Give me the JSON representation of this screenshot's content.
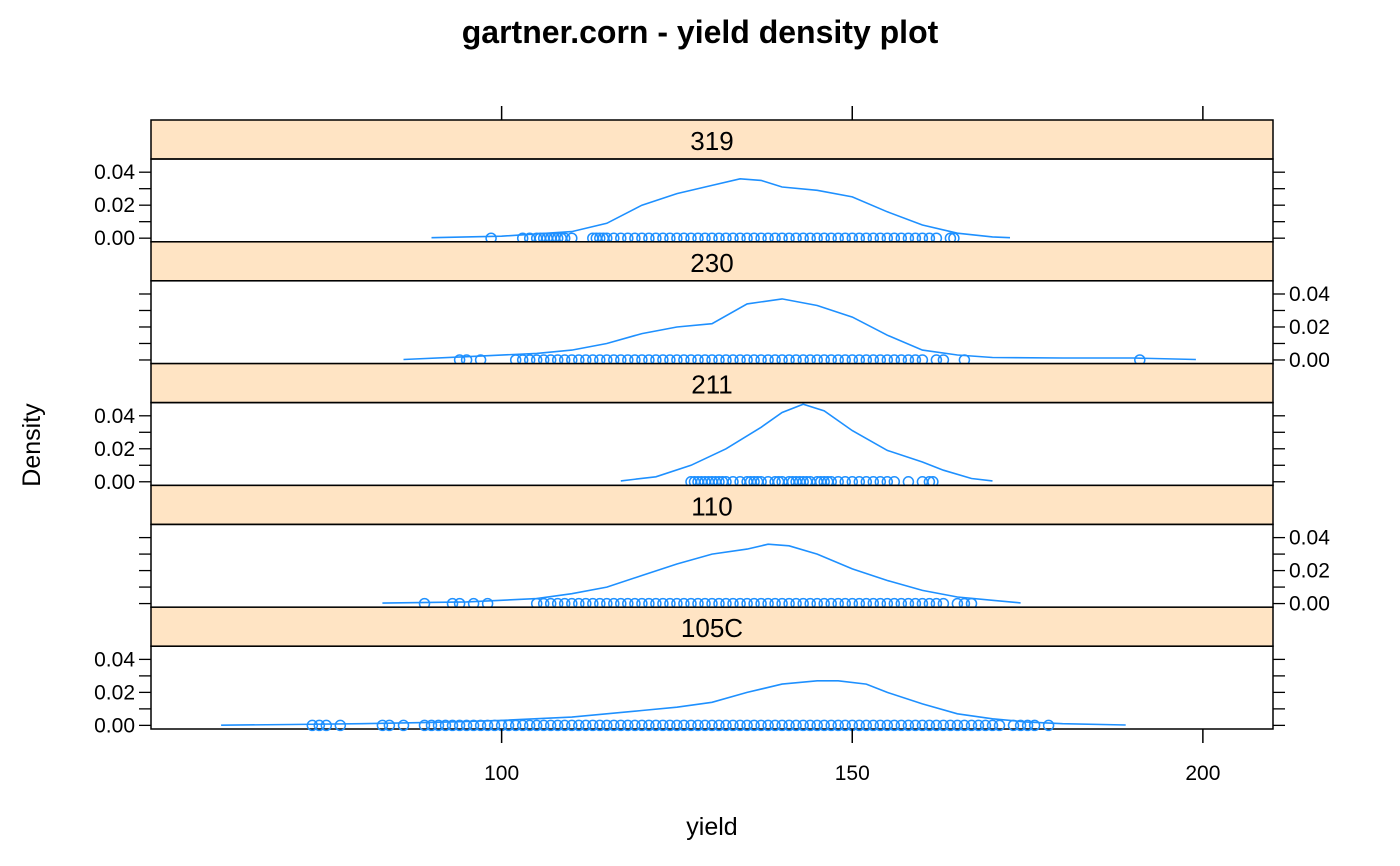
{
  "chart_data": {
    "type": "density",
    "title": "gartner.corn - yield density plot",
    "xlabel": "yield",
    "ylabel": "Density",
    "xlim": [
      50,
      210
    ],
    "ylim": [
      -0.0022,
      0.048
    ],
    "x_ticks": [
      100,
      150,
      200
    ],
    "y_ticks": [
      0.0,
      0.02,
      0.04
    ],
    "y_tick_labels": [
      "0.00",
      "0.02",
      "0.04"
    ],
    "line_color": "#1E90FF",
    "strip_color": "#FFE4C4",
    "panels": [
      {
        "label": "319",
        "curve": [
          [
            90,
            0.0003
          ],
          [
            100,
            0.0012
          ],
          [
            110,
            0.004
          ],
          [
            115,
            0.009
          ],
          [
            120,
            0.02
          ],
          [
            125,
            0.027
          ],
          [
            130,
            0.032
          ],
          [
            134,
            0.036
          ],
          [
            137,
            0.035
          ],
          [
            140,
            0.031
          ],
          [
            145,
            0.029
          ],
          [
            150,
            0.025
          ],
          [
            155,
            0.016
          ],
          [
            160,
            0.008
          ],
          [
            165,
            0.003
          ],
          [
            170,
            0.0008
          ],
          [
            172.5,
            0.0003
          ]
        ],
        "points": [
          98.5,
          103,
          104,
          105,
          105.5,
          106,
          106.5,
          107,
          107.5,
          108,
          108.5,
          109,
          110,
          113,
          113.5,
          114,
          114.5,
          115,
          116,
          117,
          118,
          119,
          120,
          121,
          122,
          123,
          124,
          125,
          126,
          127,
          128,
          129,
          130,
          131,
          132,
          133,
          134,
          135,
          136,
          137,
          138,
          139,
          140,
          141,
          142,
          143,
          144,
          145,
          146,
          147,
          148,
          149,
          150,
          151,
          152,
          153,
          154,
          155,
          156,
          157,
          158,
          159,
          160,
          161,
          162,
          164,
          164.5
        ]
      },
      {
        "label": "230",
        "curve": [
          [
            86,
            0.0003
          ],
          [
            95,
            0.002
          ],
          [
            105,
            0.004
          ],
          [
            110,
            0.006
          ],
          [
            115,
            0.01
          ],
          [
            120,
            0.016
          ],
          [
            125,
            0.02
          ],
          [
            130,
            0.022
          ],
          [
            135,
            0.034
          ],
          [
            140,
            0.037
          ],
          [
            145,
            0.033
          ],
          [
            150,
            0.026
          ],
          [
            155,
            0.015
          ],
          [
            160,
            0.006
          ],
          [
            165,
            0.003
          ],
          [
            170,
            0.0015
          ],
          [
            180,
            0.0012
          ],
          [
            190,
            0.0012
          ],
          [
            199,
            0.0003
          ]
        ],
        "points": [
          94,
          95,
          97,
          102,
          103,
          104,
          105,
          106,
          107,
          108,
          109,
          110,
          111,
          112,
          113,
          114,
          115,
          116,
          117,
          118,
          119,
          120,
          121,
          122,
          123,
          124,
          125,
          126,
          127,
          128,
          129,
          130,
          131,
          132,
          133,
          134,
          135,
          136,
          137,
          138,
          139,
          140,
          141,
          142,
          143,
          144,
          145,
          146,
          147,
          148,
          149,
          150,
          151,
          152,
          153,
          154,
          155,
          156,
          157,
          158,
          159,
          160,
          162,
          163,
          166,
          191
        ]
      },
      {
        "label": "211",
        "curve": [
          [
            117,
            0.0005
          ],
          [
            122,
            0.003
          ],
          [
            127,
            0.01
          ],
          [
            132,
            0.02
          ],
          [
            137,
            0.033
          ],
          [
            140,
            0.042
          ],
          [
            143,
            0.047
          ],
          [
            146,
            0.043
          ],
          [
            150,
            0.031
          ],
          [
            155,
            0.019
          ],
          [
            160,
            0.012
          ],
          [
            163,
            0.007
          ],
          [
            167,
            0.002
          ],
          [
            170,
            0.0005
          ]
        ],
        "points": [
          127,
          127.5,
          128,
          128.5,
          129,
          129.5,
          130,
          130.5,
          131,
          131.5,
          132,
          133,
          134,
          135,
          135.5,
          136,
          136.5,
          137,
          138,
          139,
          139.5,
          140,
          141,
          141.5,
          142,
          142.5,
          143,
          143.5,
          144,
          145,
          145.5,
          146,
          146.5,
          147,
          148,
          149,
          150,
          151,
          152,
          153,
          154,
          155,
          156,
          158,
          160,
          161,
          161.5
        ]
      },
      {
        "label": "110",
        "curve": [
          [
            83,
            0.0003
          ],
          [
            95,
            0.001
          ],
          [
            105,
            0.003
          ],
          [
            110,
            0.006
          ],
          [
            115,
            0.01
          ],
          [
            120,
            0.017
          ],
          [
            125,
            0.024
          ],
          [
            130,
            0.03
          ],
          [
            135,
            0.033
          ],
          [
            138,
            0.036
          ],
          [
            141,
            0.035
          ],
          [
            145,
            0.03
          ],
          [
            150,
            0.021
          ],
          [
            155,
            0.014
          ],
          [
            160,
            0.008
          ],
          [
            165,
            0.004
          ],
          [
            170,
            0.002
          ],
          [
            174,
            0.0004
          ]
        ],
        "points": [
          89,
          93,
          94,
          96,
          98,
          105,
          106,
          107,
          108,
          109,
          110,
          111,
          112,
          113,
          114,
          115,
          116,
          117,
          118,
          119,
          120,
          121,
          122,
          123,
          124,
          125,
          126,
          127,
          128,
          129,
          130,
          131,
          132,
          133,
          134,
          135,
          136,
          137,
          138,
          139,
          140,
          141,
          142,
          143,
          144,
          145,
          146,
          147,
          148,
          149,
          150,
          151,
          152,
          153,
          154,
          155,
          156,
          157,
          158,
          159,
          160,
          161,
          162,
          163,
          165,
          166,
          167
        ]
      },
      {
        "label": "105C",
        "curve": [
          [
            60,
            0.0001
          ],
          [
            70,
            0.0005
          ],
          [
            80,
            0.001
          ],
          [
            90,
            0.0018
          ],
          [
            100,
            0.003
          ],
          [
            110,
            0.005
          ],
          [
            120,
            0.009
          ],
          [
            125,
            0.011
          ],
          [
            130,
            0.014
          ],
          [
            135,
            0.02
          ],
          [
            140,
            0.025
          ],
          [
            145,
            0.027
          ],
          [
            148,
            0.027
          ],
          [
            152,
            0.025
          ],
          [
            155,
            0.02
          ],
          [
            160,
            0.013
          ],
          [
            165,
            0.007
          ],
          [
            170,
            0.004
          ],
          [
            175,
            0.002
          ],
          [
            180,
            0.001
          ],
          [
            189,
            0.0002
          ]
        ],
        "points": [
          73,
          74,
          75,
          77,
          83,
          84,
          86,
          89,
          90,
          91,
          92,
          93,
          94,
          95,
          96,
          97,
          98,
          99,
          100,
          101,
          102,
          103,
          104,
          105,
          106,
          107,
          108,
          109,
          110,
          111,
          112,
          113,
          114,
          115,
          116,
          117,
          118,
          119,
          120,
          121,
          122,
          123,
          124,
          125,
          126,
          127,
          128,
          129,
          130,
          131,
          132,
          133,
          134,
          135,
          136,
          137,
          138,
          139,
          140,
          141,
          142,
          143,
          144,
          145,
          146,
          147,
          148,
          149,
          150,
          151,
          152,
          153,
          154,
          155,
          156,
          157,
          158,
          159,
          160,
          161,
          162,
          163,
          164,
          165,
          166,
          167,
          168,
          169,
          170,
          171,
          173,
          174,
          175,
          176,
          178
        ]
      }
    ]
  }
}
